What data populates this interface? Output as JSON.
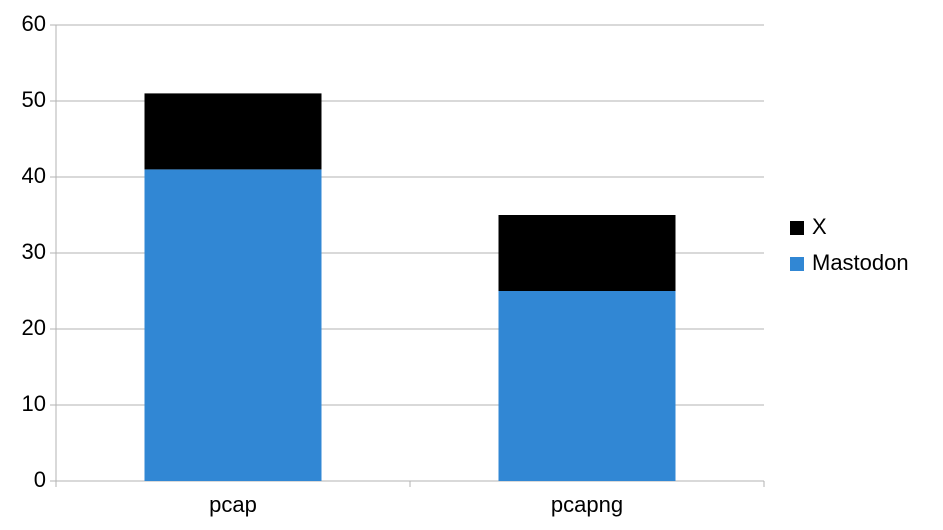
{
  "chart_data": {
    "type": "stacked_bar",
    "categories": [
      "pcap",
      "pcapng"
    ],
    "series": [
      {
        "name": "Mastodon",
        "color": "#3187d4",
        "values": [
          41,
          25
        ]
      },
      {
        "name": "X",
        "color": "#000000",
        "values": [
          10,
          10
        ]
      }
    ],
    "ylim": [
      0,
      60
    ],
    "yticks": [
      0,
      10,
      20,
      30,
      40,
      50,
      60
    ],
    "grid": true,
    "legend": "right"
  }
}
